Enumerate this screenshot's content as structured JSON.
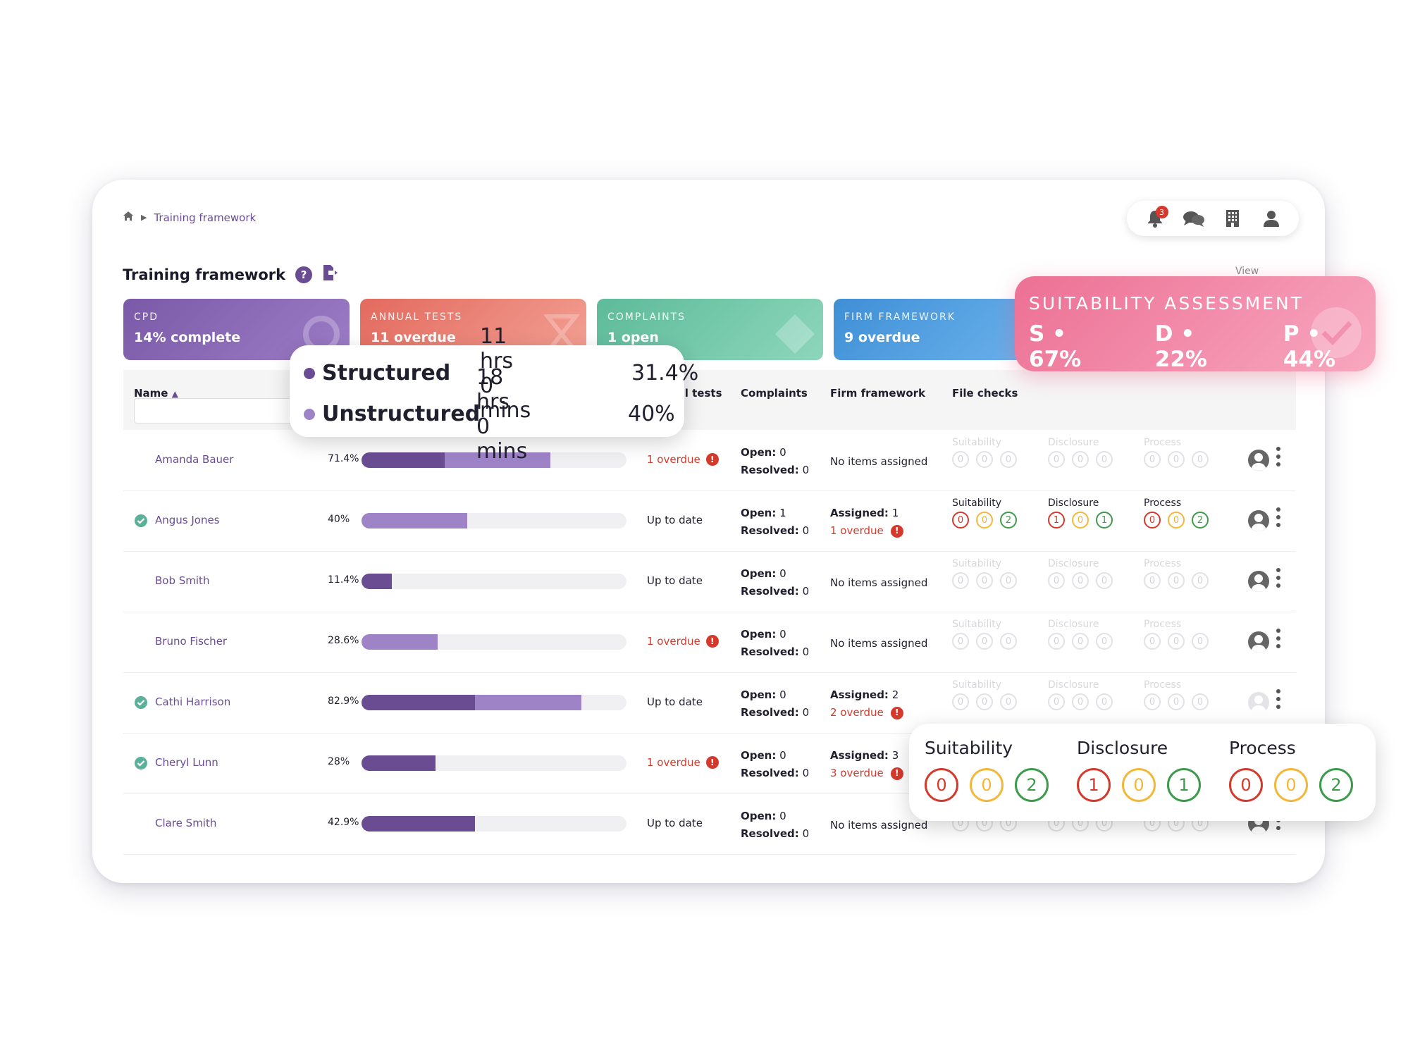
{
  "breadcrumb": {
    "label": "Training framework"
  },
  "topbar": {
    "notifications_count": "3"
  },
  "page": {
    "title": "Training framework",
    "help_icon": "?",
    "view_label": "View"
  },
  "cards": [
    {
      "category": "CPD",
      "value": "14% complete",
      "color": "#7a5aa8"
    },
    {
      "category": "ANNUAL TESTS",
      "value": "11 overdue",
      "color": "#e36a5e"
    },
    {
      "category": "COMPLAINTS",
      "value": "1 open",
      "color": "#5dbb9a"
    },
    {
      "category": "FIRM FRAMEWORK",
      "value": "9 overdue",
      "color": "#3f8fd6"
    }
  ],
  "table": {
    "headers": {
      "name": "Name",
      "annual": "Annual tests",
      "complaints": "Complaints",
      "firm": "Firm framework",
      "file_checks": "File checks"
    },
    "labels": {
      "open": "Open:",
      "resolved": "Resolved:",
      "assigned": "Assigned:",
      "no_items": "No items assigned",
      "up_to_date": "Up to date",
      "suitability": "Suitability",
      "disclosure": "Disclosure",
      "process": "Process"
    },
    "rows": [
      {
        "name": "Amanda Bauer",
        "checked": false,
        "pct": "71.4%",
        "structured": 0.314,
        "unstructured": 0.4,
        "annual": "1 overdue",
        "annual_overdue": true,
        "open": "0",
        "resolved": "0",
        "firm_assigned": "",
        "firm_overdue": "",
        "fc_active": false,
        "fc": [
          [
            0,
            0,
            0
          ],
          [
            0,
            0,
            0
          ],
          [
            0,
            0,
            0
          ]
        ]
      },
      {
        "name": "Angus Jones",
        "checked": true,
        "pct": "40%",
        "structured": 0.0,
        "unstructured": 0.4,
        "annual": "Up to date",
        "annual_overdue": false,
        "open": "1",
        "resolved": "0",
        "firm_assigned": "1",
        "firm_overdue": "1 overdue",
        "fc_active": true,
        "fc": [
          [
            0,
            0,
            2
          ],
          [
            1,
            0,
            1
          ],
          [
            0,
            0,
            2
          ]
        ]
      },
      {
        "name": "Bob Smith",
        "checked": false,
        "pct": "11.4%",
        "structured": 0.114,
        "unstructured": 0.0,
        "annual": "Up to date",
        "annual_overdue": false,
        "open": "0",
        "resolved": "0",
        "firm_assigned": "",
        "firm_overdue": "",
        "fc_active": false,
        "fc": [
          [
            0,
            0,
            0
          ],
          [
            0,
            0,
            0
          ],
          [
            0,
            0,
            0
          ]
        ]
      },
      {
        "name": "Bruno Fischer",
        "checked": false,
        "pct": "28.6%",
        "structured": 0.0,
        "unstructured": 0.286,
        "annual": "1 overdue",
        "annual_overdue": true,
        "open": "0",
        "resolved": "0",
        "firm_assigned": "",
        "firm_overdue": "",
        "fc_active": false,
        "fc": [
          [
            0,
            0,
            0
          ],
          [
            0,
            0,
            0
          ],
          [
            0,
            0,
            0
          ]
        ]
      },
      {
        "name": "Cathi Harrison",
        "checked": true,
        "pct": "82.9%",
        "structured": 0.429,
        "unstructured": 0.4,
        "annual": "Up to date",
        "annual_overdue": false,
        "open": "0",
        "resolved": "0",
        "firm_assigned": "2",
        "firm_overdue": "2 overdue",
        "fc_active": false,
        "fc": [
          [
            0,
            0,
            0
          ],
          [
            0,
            0,
            0
          ],
          [
            0,
            0,
            0
          ]
        ]
      },
      {
        "name": "Cheryl Lunn",
        "checked": true,
        "pct": "28%",
        "structured": 0.28,
        "unstructured": 0.0,
        "annual": "1 overdue",
        "annual_overdue": true,
        "open": "0",
        "resolved": "0",
        "firm_assigned": "3",
        "firm_overdue": "3 overdue",
        "fc_active": false,
        "fc": [
          [
            0,
            0,
            0
          ],
          [
            0,
            0,
            0
          ],
          [
            0,
            0,
            0
          ]
        ]
      },
      {
        "name": "Clare Smith",
        "checked": false,
        "pct": "42.9%",
        "structured": 0.429,
        "unstructured": 0.0,
        "annual": "Up to date",
        "annual_overdue": false,
        "open": "0",
        "resolved": "0",
        "firm_assigned": "",
        "firm_overdue": "",
        "fc_active": false,
        "fc": [
          [
            0,
            0,
            0
          ],
          [
            0,
            0,
            0
          ],
          [
            0,
            0,
            0
          ]
        ]
      }
    ]
  },
  "cpd_tooltip": {
    "rows": [
      {
        "label": "Structured",
        "time": "11 hrs 0 mins",
        "pct": "31.4%",
        "color": "#6a4c93"
      },
      {
        "label": "Unstructured",
        "time": "18 hrs 0 mins",
        "pct": "40%",
        "color": "#9e83c7"
      }
    ]
  },
  "suitability_card": {
    "title": "SUITABILITY ASSESSMENT",
    "s": "S • 67%",
    "d": "D • 22%",
    "p": "P • 44%"
  },
  "file_checks_popup": {
    "groups": [
      {
        "label": "Suitability",
        "values": [
          "0",
          "0",
          "2"
        ]
      },
      {
        "label": "Disclosure",
        "values": [
          "1",
          "0",
          "1"
        ]
      },
      {
        "label": "Process",
        "values": [
          "0",
          "0",
          "2"
        ]
      }
    ]
  },
  "status_colors": {
    "red": "#d33a2c",
    "amber": "#f2b83a",
    "green": "#3d9a4c",
    "brand": "#6a4c93"
  }
}
